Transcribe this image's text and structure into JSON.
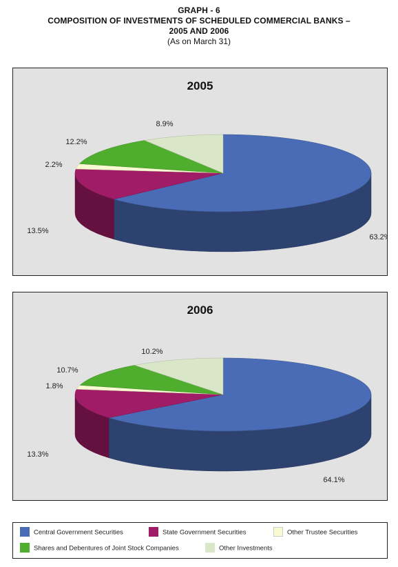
{
  "header": {
    "line1": "GRAPH - 6",
    "line2": "COMPOSITION OF INVESTMENTS OF SCHEDULED COMMERCIAL BANKS –",
    "line3": "2005 AND 2006",
    "line4": "(As on March 31)"
  },
  "colors": {
    "central_govt": "#4a6bb5",
    "state_govt": "#a11c66",
    "other_trustee": "#fafad2",
    "shares_debentures": "#4fae2e",
    "other_investments": "#d9e7c8"
  },
  "legend": [
    {
      "label": "Central Government Securities",
      "color_key": "central_govt"
    },
    {
      "label": "State Government Securities",
      "color_key": "state_govt"
    },
    {
      "label": "Other Trustee Securities",
      "color_key": "other_trustee"
    },
    {
      "label": "Shares and Debentures of Joint Stock Companies",
      "color_key": "shares_debentures"
    },
    {
      "label": "Other Investments",
      "color_key": "other_investments"
    }
  ],
  "chart_data": [
    {
      "type": "pie",
      "title": "2005",
      "slices": [
        {
          "name": "Central Government Securities",
          "value": 63.2,
          "label": "63.2%"
        },
        {
          "name": "State Government Securities",
          "value": 13.5,
          "label": "13.5%"
        },
        {
          "name": "Other Trustee Securities",
          "value": 2.2,
          "label": "2.2%"
        },
        {
          "name": "Shares and Debentures of Joint Stock Companies",
          "value": 12.2,
          "label": "12.2%"
        },
        {
          "name": "Other Investments",
          "value": 8.9,
          "label": "8.9%"
        }
      ]
    },
    {
      "type": "pie",
      "title": "2006",
      "slices": [
        {
          "name": "Central Government Securities",
          "value": 64.1,
          "label": "64.1%"
        },
        {
          "name": "State Government Securities",
          "value": 13.3,
          "label": "13.3%"
        },
        {
          "name": "Other Trustee Securities",
          "value": 1.8,
          "label": "1.8%"
        },
        {
          "name": "Shares and Debentures of Joint Stock Companies",
          "value": 10.7,
          "label": "10.7%"
        },
        {
          "name": "Other Investments",
          "value": 10.2,
          "label": "10.2%"
        }
      ]
    }
  ]
}
